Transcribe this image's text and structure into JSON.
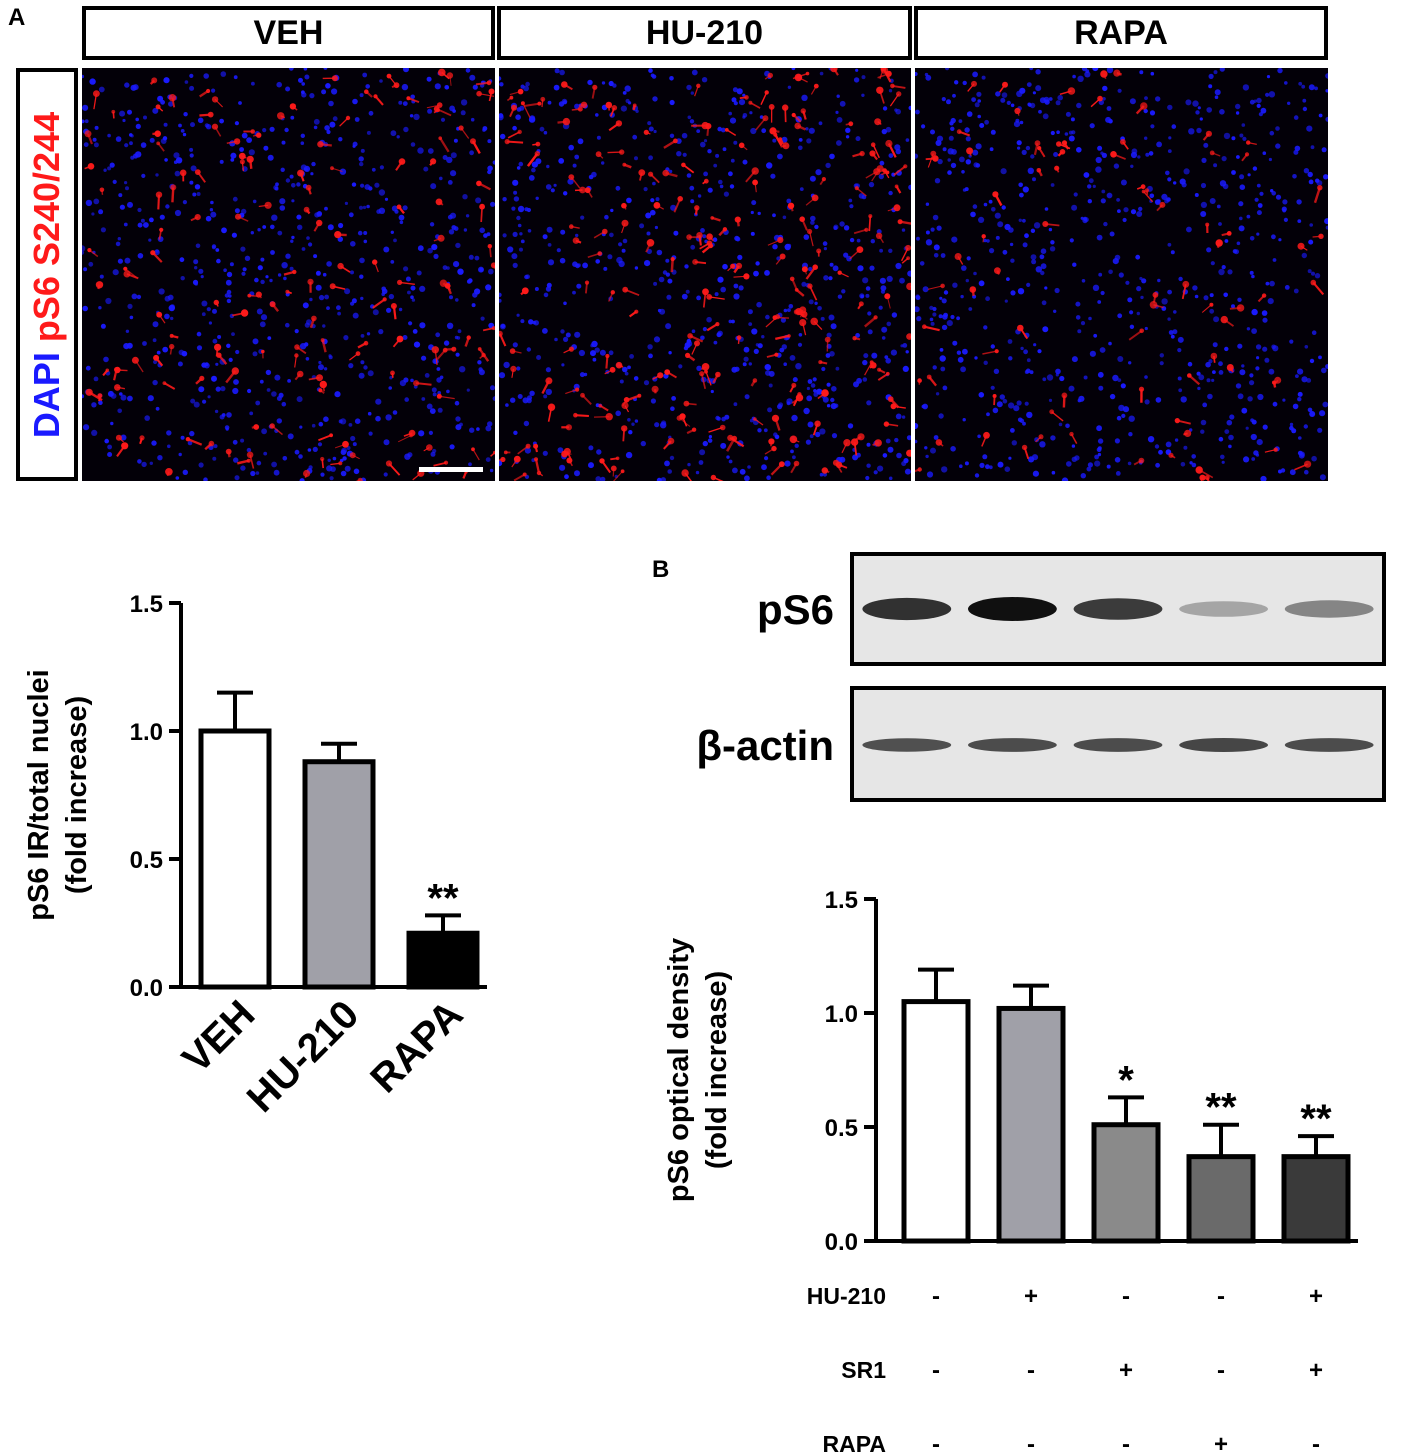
{
  "panel_a": {
    "letter": "A",
    "headers": [
      "VEH",
      "HU-210",
      "RAPA"
    ],
    "stain_label": {
      "dapi": "DAPI",
      "ps6": "pS6 S240/244"
    },
    "colors": {
      "dapi": "#1a1aff",
      "ps6": "#ff1a1a",
      "background": "#030008"
    }
  },
  "panel_b": {
    "letter": "B",
    "blot_labels": [
      "pS6",
      "β-actin"
    ],
    "ps6_band_intensity": [
      0.85,
      1.0,
      0.8,
      0.3,
      0.45
    ],
    "actin_band_intensity": [
      0.7,
      0.72,
      0.72,
      0.75,
      0.72
    ],
    "treatment_rows": [
      {
        "label": "HU-210",
        "signs": [
          "-",
          "+",
          "-",
          "-",
          "+"
        ]
      },
      {
        "label": "SR1",
        "signs": [
          "-",
          "-",
          "+",
          "-",
          "+"
        ]
      },
      {
        "label": "RAPA",
        "signs": [
          "-",
          "-",
          "-",
          "+",
          "-"
        ]
      }
    ]
  },
  "chart_data": [
    {
      "type": "bar",
      "categories": [
        "VEH",
        "HU-210",
        "RAPA"
      ],
      "values": [
        1.0,
        0.88,
        0.21
      ],
      "errors": [
        0.15,
        0.07,
        0.07
      ],
      "annotations": [
        "",
        "",
        "**"
      ],
      "bar_colors": [
        "#ffffff",
        "#a0a0a8",
        "#000000"
      ],
      "ylabel": [
        "pS6 IR/total nuclei",
        "(fold increase)"
      ],
      "ylim": [
        0,
        1.5
      ],
      "yticks": [
        "0.0",
        "0.5",
        "1.0",
        "1.5"
      ]
    },
    {
      "type": "bar",
      "categories": [
        "",
        "",
        "",
        "",
        ""
      ],
      "values": [
        1.05,
        1.02,
        0.51,
        0.37,
        0.37
      ],
      "errors": [
        0.14,
        0.1,
        0.12,
        0.14,
        0.09
      ],
      "annotations": [
        "",
        "",
        "*",
        "**",
        "**"
      ],
      "bar_colors": [
        "#ffffff",
        "#a0a0a8",
        "#8a8a8a",
        "#6a6a6a",
        "#3a3a3a"
      ],
      "ylabel": [
        "pS6 optical density",
        "(fold increase)"
      ],
      "ylim": [
        0,
        1.5
      ],
      "yticks": [
        "0.0",
        "0.5",
        "1.0",
        "1.5"
      ]
    }
  ]
}
